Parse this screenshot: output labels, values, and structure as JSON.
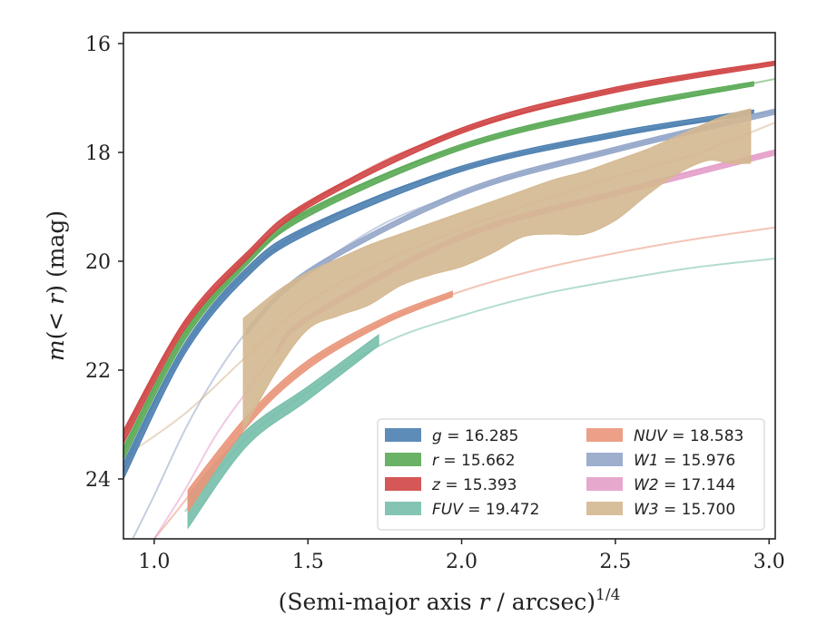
{
  "chart_data": {
    "type": "line",
    "xlabel": "(Semi-major axis r / arcsec)^{1/4}",
    "ylabel": "m(< r) (mag)",
    "xlim": [
      0.9,
      3.02
    ],
    "ylim": [
      25.1,
      15.8
    ],
    "y_inverted": true,
    "xticks": [
      1.0,
      1.5,
      2.0,
      2.5,
      3.0
    ],
    "xtick_labels": [
      "1.0",
      "1.5",
      "2.0",
      "2.5",
      "3.0"
    ],
    "yticks": [
      16,
      18,
      20,
      22,
      24
    ],
    "ytick_labels": [
      "16",
      "18",
      "20",
      "22",
      "24"
    ],
    "grid": false,
    "legend_position": "lower-right",
    "series": [
      {
        "name": "g = 16.285",
        "label_var": "g",
        "label_val": "16.285",
        "color": "#4c7fb0",
        "curve": [
          [
            0.9,
            23.85
          ],
          [
            1.0,
            22.6
          ],
          [
            1.1,
            21.6
          ],
          [
            1.2,
            20.8
          ],
          [
            1.3,
            20.2
          ],
          [
            1.4,
            19.75
          ],
          [
            1.5,
            19.4
          ],
          [
            1.75,
            18.75
          ],
          [
            2.0,
            18.3
          ],
          [
            2.25,
            17.95
          ],
          [
            2.5,
            17.68
          ],
          [
            2.75,
            17.45
          ],
          [
            3.02,
            17.25
          ]
        ],
        "data_band": [
          [
            0.9,
            23.7,
            24.0
          ],
          [
            1.1,
            21.5,
            21.7
          ],
          [
            1.3,
            20.12,
            20.3
          ],
          [
            1.5,
            19.35,
            19.5
          ],
          [
            2.0,
            18.25,
            18.35
          ],
          [
            2.5,
            17.62,
            17.72
          ],
          [
            2.95,
            17.22,
            17.3
          ]
        ],
        "data_xmax": 2.95
      },
      {
        "name": "r = 15.662",
        "label_var": "r",
        "label_val": "15.662",
        "color": "#5aaa55",
        "curve": [
          [
            0.9,
            23.5
          ],
          [
            1.0,
            22.35
          ],
          [
            1.1,
            21.35
          ],
          [
            1.2,
            20.6
          ],
          [
            1.3,
            20.0
          ],
          [
            1.4,
            19.5
          ],
          [
            1.5,
            19.1
          ],
          [
            1.75,
            18.4
          ],
          [
            2.0,
            17.9
          ],
          [
            2.25,
            17.5
          ],
          [
            2.5,
            17.2
          ],
          [
            2.75,
            16.95
          ],
          [
            3.02,
            16.65
          ]
        ],
        "data_band": [
          [
            0.9,
            23.4,
            23.65
          ],
          [
            1.1,
            21.28,
            21.45
          ],
          [
            1.3,
            19.95,
            20.08
          ],
          [
            1.5,
            19.05,
            19.18
          ],
          [
            2.0,
            17.85,
            17.95
          ],
          [
            2.5,
            17.15,
            17.25
          ],
          [
            2.95,
            16.7,
            16.78
          ]
        ],
        "data_xmax": 2.95
      },
      {
        "name": "z = 15.393",
        "label_var": "z",
        "label_val": "15.393",
        "color": "#d04545",
        "curve": [
          [
            0.9,
            23.2
          ],
          [
            1.0,
            22.1
          ],
          [
            1.1,
            21.15
          ],
          [
            1.2,
            20.5
          ],
          [
            1.3,
            19.9
          ],
          [
            1.4,
            19.4
          ],
          [
            1.5,
            18.95
          ],
          [
            1.75,
            18.15
          ],
          [
            2.0,
            17.6
          ],
          [
            2.25,
            17.2
          ],
          [
            2.5,
            16.85
          ],
          [
            2.75,
            16.6
          ],
          [
            3.02,
            16.35
          ]
        ],
        "data_band": [
          [
            0.9,
            23.1,
            23.35
          ],
          [
            1.1,
            21.08,
            21.25
          ],
          [
            1.3,
            19.84,
            19.98
          ],
          [
            1.5,
            18.9,
            19.02
          ],
          [
            2.0,
            17.55,
            17.65
          ],
          [
            2.5,
            16.8,
            16.9
          ],
          [
            3.02,
            16.32,
            16.4
          ]
        ],
        "data_xmax": 3.02
      },
      {
        "name": "FUV = 19.472",
        "label_var": "FUV",
        "label_val": "19.472",
        "color": "#76bfaa",
        "curve": [
          [
            1.1,
            24.6
          ],
          [
            1.3,
            23.25
          ],
          [
            1.5,
            22.4
          ],
          [
            1.75,
            21.5
          ],
          [
            2.0,
            21.0
          ],
          [
            2.25,
            20.62
          ],
          [
            2.5,
            20.35
          ],
          [
            2.75,
            20.12
          ],
          [
            3.02,
            19.95
          ]
        ],
        "data_band": [
          [
            1.11,
            24.3,
            24.9
          ],
          [
            1.3,
            23.1,
            23.4
          ],
          [
            1.5,
            22.3,
            22.55
          ],
          [
            1.73,
            21.35,
            21.55
          ]
        ],
        "data_xmax": 1.73
      },
      {
        "name": "NUV = 18.583",
        "label_var": "NUV",
        "label_val": "18.583",
        "color": "#e9967a",
        "curve": [
          [
            1.0,
            25.1
          ],
          [
            1.1,
            24.4
          ],
          [
            1.3,
            22.95
          ],
          [
            1.5,
            21.9
          ],
          [
            1.75,
            21.1
          ],
          [
            2.0,
            20.55
          ],
          [
            2.25,
            20.15
          ],
          [
            2.5,
            19.85
          ],
          [
            2.75,
            19.6
          ],
          [
            3.02,
            19.38
          ]
        ],
        "data_band": [
          [
            1.11,
            24.2,
            24.6
          ],
          [
            1.3,
            22.85,
            23.05
          ],
          [
            1.5,
            21.82,
            21.98
          ],
          [
            1.75,
            21.03,
            21.15
          ],
          [
            1.97,
            20.55,
            20.65
          ]
        ],
        "data_xmax": 1.97
      },
      {
        "name": "W1 = 15.976",
        "label_var": "W1",
        "label_val": "15.976",
        "color": "#93a6c9",
        "curve": [
          [
            0.93,
            25.1
          ],
          [
            1.0,
            24.3
          ],
          [
            1.1,
            23.1
          ],
          [
            1.2,
            22.1
          ],
          [
            1.3,
            21.3
          ],
          [
            1.4,
            20.7
          ],
          [
            1.5,
            20.2
          ],
          [
            1.75,
            19.3
          ],
          [
            2.0,
            18.75
          ],
          [
            2.25,
            18.3
          ],
          [
            2.5,
            17.95
          ],
          [
            2.75,
            17.6
          ],
          [
            3.02,
            17.25
          ]
        ],
        "data_band": [
          [
            1.3,
            21.25,
            21.35
          ],
          [
            1.5,
            20.15,
            20.25
          ],
          [
            2.0,
            18.7,
            18.8
          ],
          [
            2.5,
            17.9,
            18.0
          ],
          [
            3.02,
            17.2,
            17.3
          ]
        ],
        "data_xmax": 3.02
      },
      {
        "name": "W2 = 17.144",
        "label_var": "W2",
        "label_val": "17.144",
        "color": "#e49fc9",
        "curve": [
          [
            1.0,
            25.1
          ],
          [
            1.1,
            24.2
          ],
          [
            1.2,
            23.2
          ],
          [
            1.3,
            22.4
          ],
          [
            1.4,
            21.65
          ],
          [
            1.5,
            21.05
          ],
          [
            1.75,
            20.2
          ],
          [
            2.0,
            19.55
          ],
          [
            2.25,
            19.1
          ],
          [
            2.5,
            18.75
          ],
          [
            2.75,
            18.35
          ],
          [
            3.02,
            18.0
          ]
        ],
        "data_band": [
          [
            1.4,
            21.6,
            21.7
          ],
          [
            1.5,
            21.0,
            21.1
          ],
          [
            2.0,
            19.5,
            19.6
          ],
          [
            2.5,
            18.7,
            18.8
          ],
          [
            3.02,
            17.95,
            18.05
          ]
        ],
        "data_xmax": 3.02
      },
      {
        "name": "W3 = 15.700",
        "label_var": "W3",
        "label_val": "15.700",
        "color": "#d4b890",
        "curve": [
          [
            0.9,
            23.6
          ],
          [
            1.1,
            22.8
          ],
          [
            1.3,
            21.75
          ],
          [
            1.5,
            20.75
          ],
          [
            1.75,
            20.0
          ],
          [
            2.0,
            19.4
          ],
          [
            2.25,
            18.9
          ],
          [
            2.5,
            18.45
          ],
          [
            2.75,
            18.05
          ],
          [
            3.02,
            17.45
          ]
        ],
        "data_band": [
          [
            1.29,
            21.05,
            23.1
          ],
          [
            1.4,
            20.55,
            22.0
          ],
          [
            1.5,
            20.2,
            21.25
          ],
          [
            1.6,
            19.95,
            21.0
          ],
          [
            1.7,
            19.7,
            20.8
          ],
          [
            1.8,
            19.5,
            20.45
          ],
          [
            1.9,
            19.3,
            20.25
          ],
          [
            2.0,
            19.1,
            20.1
          ],
          [
            2.1,
            18.9,
            19.85
          ],
          [
            2.2,
            18.7,
            19.55
          ],
          [
            2.3,
            18.5,
            19.5
          ],
          [
            2.4,
            18.35,
            19.5
          ],
          [
            2.5,
            18.15,
            19.25
          ],
          [
            2.6,
            17.95,
            18.8
          ],
          [
            2.7,
            17.7,
            18.4
          ],
          [
            2.8,
            17.45,
            18.15
          ],
          [
            2.87,
            17.3,
            18.2
          ],
          [
            2.94,
            17.2,
            18.2
          ]
        ],
        "data_xmax": 2.94
      }
    ]
  }
}
